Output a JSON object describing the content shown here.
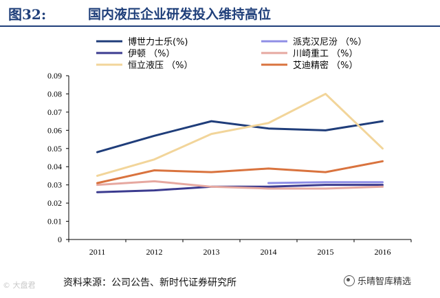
{
  "header": {
    "figure_label": "图32:",
    "title": "国内液压企业研发投入维持高位"
  },
  "source": "资料来源：公司公告、新时代证券研究所",
  "watermark_left": "© 大盘君",
  "watermark_right": "乐晴智库精选",
  "chart_data": {
    "type": "line",
    "title": "",
    "xlabel": "",
    "ylabel": "",
    "x": [
      "2011",
      "2012",
      "2013",
      "2014",
      "2015",
      "2016"
    ],
    "ylim": [
      0,
      0.09
    ],
    "yticks": [
      "0",
      "0.01",
      "0.02",
      "0.03",
      "0.04",
      "0.05",
      "0.06",
      "0.07",
      "0.08",
      "0.09"
    ],
    "grid": false,
    "legend_position": "top",
    "series": [
      {
        "name": "博世力士乐(%)",
        "color": "#1f3d7a",
        "values": [
          0.048,
          0.057,
          0.065,
          0.061,
          0.06,
          0.065
        ]
      },
      {
        "name": "派克汉尼汾 （%）",
        "color": "#8f8ee6",
        "values": [
          null,
          null,
          null,
          0.031,
          0.0315,
          0.0315
        ]
      },
      {
        "name": "伊顿 （%）",
        "color": "#3b3b8f",
        "values": [
          0.026,
          0.027,
          0.029,
          0.029,
          0.03,
          0.03
        ]
      },
      {
        "name": "川崎重工 （%）",
        "color": "#e6a8a0",
        "values": [
          0.03,
          0.032,
          0.029,
          0.028,
          0.028,
          0.029
        ]
      },
      {
        "name": "恒立液压 （%）",
        "color": "#f2d59a",
        "values": [
          0.035,
          0.044,
          0.058,
          0.064,
          0.08,
          0.05
        ]
      },
      {
        "name": "艾迪精密 （%）",
        "color": "#d9733e",
        "values": [
          0.031,
          0.038,
          0.037,
          0.039,
          0.037,
          0.043
        ]
      }
    ]
  }
}
